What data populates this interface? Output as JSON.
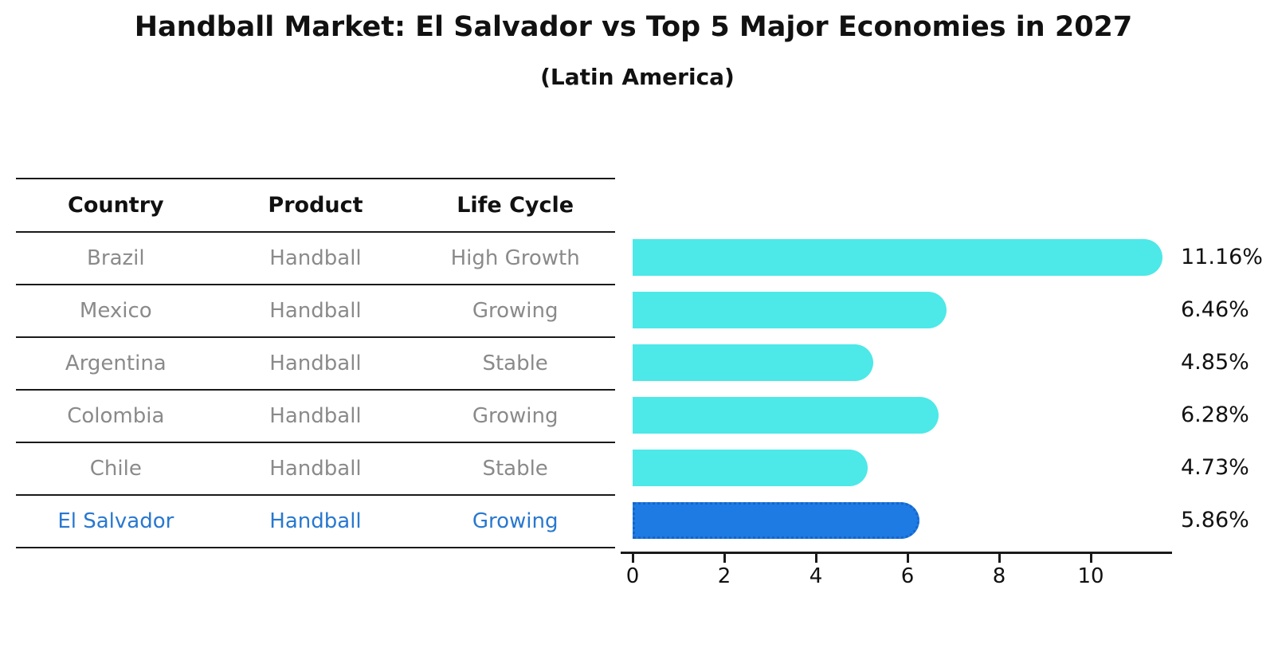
{
  "title": "Handball Market: El Salvador vs Top 5 Major Economies in 2027",
  "subtitle": "(Latin America)",
  "table": {
    "headers": [
      "Country",
      "Product",
      "Life Cycle"
    ],
    "rows": [
      {
        "country": "Brazil",
        "product": "Handball",
        "life_cycle": "High Growth",
        "value": 11.16,
        "label": "11.16%",
        "highlight": false
      },
      {
        "country": "Mexico",
        "product": "Handball",
        "life_cycle": "Growing",
        "value": 6.46,
        "label": "6.46%",
        "highlight": false
      },
      {
        "country": "Argentina",
        "product": "Handball",
        "life_cycle": "Stable",
        "value": 4.85,
        "label": "4.85%",
        "highlight": false
      },
      {
        "country": "Colombia",
        "product": "Handball",
        "life_cycle": "Growing",
        "value": 6.28,
        "label": "6.28%",
        "highlight": false
      },
      {
        "country": "Chile",
        "product": "Handball",
        "life_cycle": "Stable",
        "value": 4.73,
        "label": "4.73%",
        "highlight": false
      },
      {
        "country": "El Salvador",
        "product": "Handball",
        "life_cycle": "Growing",
        "value": 5.86,
        "label": "5.86%",
        "highlight": true
      }
    ]
  },
  "chart_data": {
    "type": "bar",
    "orientation": "horizontal",
    "title": "Handball Market: El Salvador vs Top 5 Major Economies in 2027 (Latin America)",
    "categories": [
      "Brazil",
      "Mexico",
      "Argentina",
      "Colombia",
      "Chile",
      "El Salvador"
    ],
    "values": [
      11.16,
      6.46,
      4.85,
      6.28,
      4.73,
      5.86
    ],
    "value_labels": [
      "11.16%",
      "6.46%",
      "4.85%",
      "6.28%",
      "4.73%",
      "5.86%"
    ],
    "x_ticks": [
      0,
      2,
      4,
      6,
      8,
      10
    ],
    "xlim": [
      0,
      11.7
    ],
    "xlabel": "",
    "ylabel": "",
    "grid": false,
    "legend": null,
    "highlight_category": "El Salvador"
  },
  "colors": {
    "bar": "#4DE8E8",
    "highlight_bar": "#1E7BE4",
    "highlight_border": "#1665C8",
    "highlight_text": "#2878D0",
    "row_text": "#8a8a8a",
    "header_text": "#111111",
    "axis": "#1a1a1a"
  }
}
